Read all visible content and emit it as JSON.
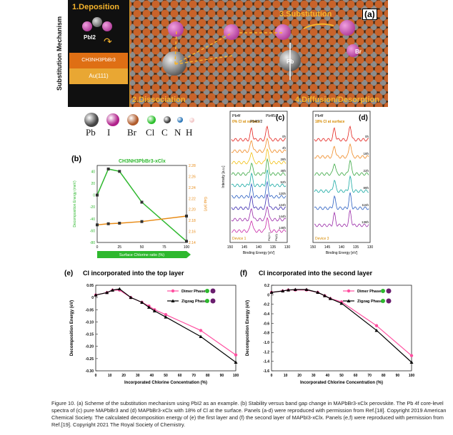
{
  "panel_a": {
    "label": "(a)",
    "side_title": "Substitution Mechanism",
    "step1": "1.Deposition",
    "step2": "2.Dissociation",
    "step3": "3.Substitution",
    "step4": "4.Diffusion/Desorption",
    "molecule_label": "PbI2",
    "perovskite_label": "CH3NH3PbBr3",
    "substrate_label": "Au(111)",
    "pb_label": "Pb",
    "br_label": "Br",
    "i_label": "I"
  },
  "legend": {
    "items": [
      {
        "symbol": "Pb",
        "color": "#444444"
      },
      {
        "symbol": "I",
        "color": "#b0208a"
      },
      {
        "symbol": "Br",
        "color": "#b05a2a"
      },
      {
        "symbol": "Cl",
        "color": "#2bbf2b"
      },
      {
        "symbol": "C",
        "color": "#3a3a3a"
      },
      {
        "symbol": "N",
        "color": "#2a76b8"
      },
      {
        "symbol": "H",
        "color": "#f2c6c6"
      }
    ]
  },
  "panel_b": {
    "label": "(b)",
    "title": "CH3NH3PbBr3-xClx",
    "ylabel_left": "Decomposition Energy (meV)",
    "ylabel_right": "Gap (eV)",
    "xlabel": "Surface Chlorine ratio (%)",
    "chart_data": {
      "type": "line",
      "x": [
        0,
        12.5,
        25,
        50,
        100
      ],
      "series": [
        {
          "values": [
            0,
            44,
            40,
            -12,
            -78
          ],
          "color": "#2eb82e"
        },
        {
          "values": [
            2.172,
            2.174,
            2.175,
            2.178,
            2.188
          ],
          "color": "#e88a14"
        }
      ],
      "xlim": [
        0,
        100
      ],
      "ylim_left": [
        -80,
        50
      ],
      "ylim_right": [
        2.14,
        2.28
      ],
      "yticks_left": [
        "40",
        "20",
        "0",
        "-20",
        "-40",
        "-60",
        "-80"
      ],
      "yticks_right": [
        "2.28",
        "2.26",
        "2.24",
        "2.22",
        "2.20",
        "2.18",
        "2.16",
        "2.14"
      ],
      "xticks": [
        "0",
        "25",
        "50",
        "75",
        "100"
      ]
    }
  },
  "panel_c": {
    "label": "(c)",
    "orbital": "Pb4f",
    "note": "0% Cl at surface",
    "device": "Device 1",
    "peak1": "Pb4f7/2",
    "peak2": "Pb4f5/2",
    "ylabel": "Intensity [a.u.]",
    "xlabel": "Binding Energy [eV]",
    "xticks": [
      "150",
      "145",
      "140",
      "135",
      "130"
    ],
    "times": [
      "0h",
      "4h",
      "28h",
      "48h",
      "52h",
      "120h",
      "124h",
      "144h",
      "148h"
    ],
    "markers": [
      "Pb(2+)",
      "Pb(0)"
    ]
  },
  "panel_d": {
    "label": "(d)",
    "orbital": "Pb4f",
    "note": "18% Cl at surface",
    "device": "Device 3",
    "xlabel": "Binding Energy [eV]",
    "xticks": [
      "150",
      "145",
      "140",
      "135",
      "130"
    ],
    "times": [
      "0h",
      "18h",
      "22h",
      "89h",
      "116h",
      "138h"
    ]
  },
  "panel_e": {
    "label": "(e)",
    "title": "Cl incorporated into the top layer",
    "ylabel": "Decomposition Energy (eV)",
    "xlabel": "Incorporated Chlorine Concentration (%)",
    "chart_data": {
      "type": "line",
      "x": [
        0,
        8,
        12,
        17,
        25,
        33,
        38,
        42,
        50,
        75,
        100
      ],
      "series": [
        {
          "name": "Dimer Phase",
          "values": [
            0.01,
            0.02,
            0.03,
            0.03,
            0.0,
            -0.02,
            -0.035,
            -0.05,
            -0.07,
            -0.135,
            -0.235
          ],
          "color": "#ff4fa0"
        },
        {
          "name": "Zigzag Phase",
          "values": [
            0.01,
            0.02,
            0.03,
            0.035,
            0.0,
            -0.02,
            -0.04,
            -0.055,
            -0.08,
            -0.16,
            -0.265
          ],
          "color": "#000000"
        }
      ],
      "xlim": [
        0,
        100
      ],
      "ylim": [
        -0.3,
        0.05
      ],
      "yticks": [
        "0.05",
        "0",
        "-0.05",
        "-0.10",
        "-0.15",
        "-0.20",
        "-0.25",
        "-0.30"
      ],
      "xticks": [
        "0",
        "10",
        "20",
        "30",
        "40",
        "50",
        "60",
        "70",
        "80",
        "90",
        "100"
      ]
    }
  },
  "panel_f": {
    "label": "(f)",
    "title": "Cl incorporated into the second layer",
    "ylabel": "Decomposition Energy (eV)",
    "xlabel": "Incorporated Chlorine Concentration (%)",
    "chart_data": {
      "type": "line",
      "x": [
        0,
        8,
        12,
        17,
        25,
        33,
        38,
        42,
        50,
        75,
        100
      ],
      "series": [
        {
          "name": "Dimer Phase",
          "values": [
            0.05,
            0.08,
            0.1,
            0.1,
            0.1,
            0.05,
            -0.02,
            -0.08,
            -0.15,
            -0.65,
            -1.28
          ],
          "color": "#ff4fa0"
        },
        {
          "name": "Zigzag Phase",
          "values": [
            0.05,
            0.08,
            0.1,
            0.11,
            0.11,
            0.05,
            -0.02,
            -0.08,
            -0.18,
            -0.75,
            -1.42
          ],
          "color": "#000000"
        }
      ],
      "xlim": [
        0,
        100
      ],
      "ylim": [
        -1.6,
        0.2
      ],
      "yticks": [
        "0.2",
        "0",
        "-0.2",
        "-0.4",
        "-0.6",
        "-0.8",
        "-1.0",
        "-1.2",
        "-1.4",
        "-1.6"
      ],
      "xticks": [
        "0",
        "10",
        "20",
        "30",
        "40",
        "50",
        "60",
        "70",
        "80",
        "90",
        "100"
      ]
    }
  },
  "caption": "Figure 10. (a) Scheme of the substitution mechanism using PbI2 as an example. (b) Stability versus band gap change in MAPbBr3-xClx perovskite. The Pb 4f core-level spectra of (c) pure MAPbBr3 and (d) MAPbBr3-xClx with 18% of Cl at the surface. Panels (a-d) were reproduced with permission from Ref.[18]. Copyright 2019 American Chemical Society. The calculated decomposition energy of (e) the first layer and (f) the second layer of MAPbI3-xClx. Panels (e,f) were reproduced with permission from Ref.[19]. Copyright 2021 The Royal Society of Chemistry."
}
